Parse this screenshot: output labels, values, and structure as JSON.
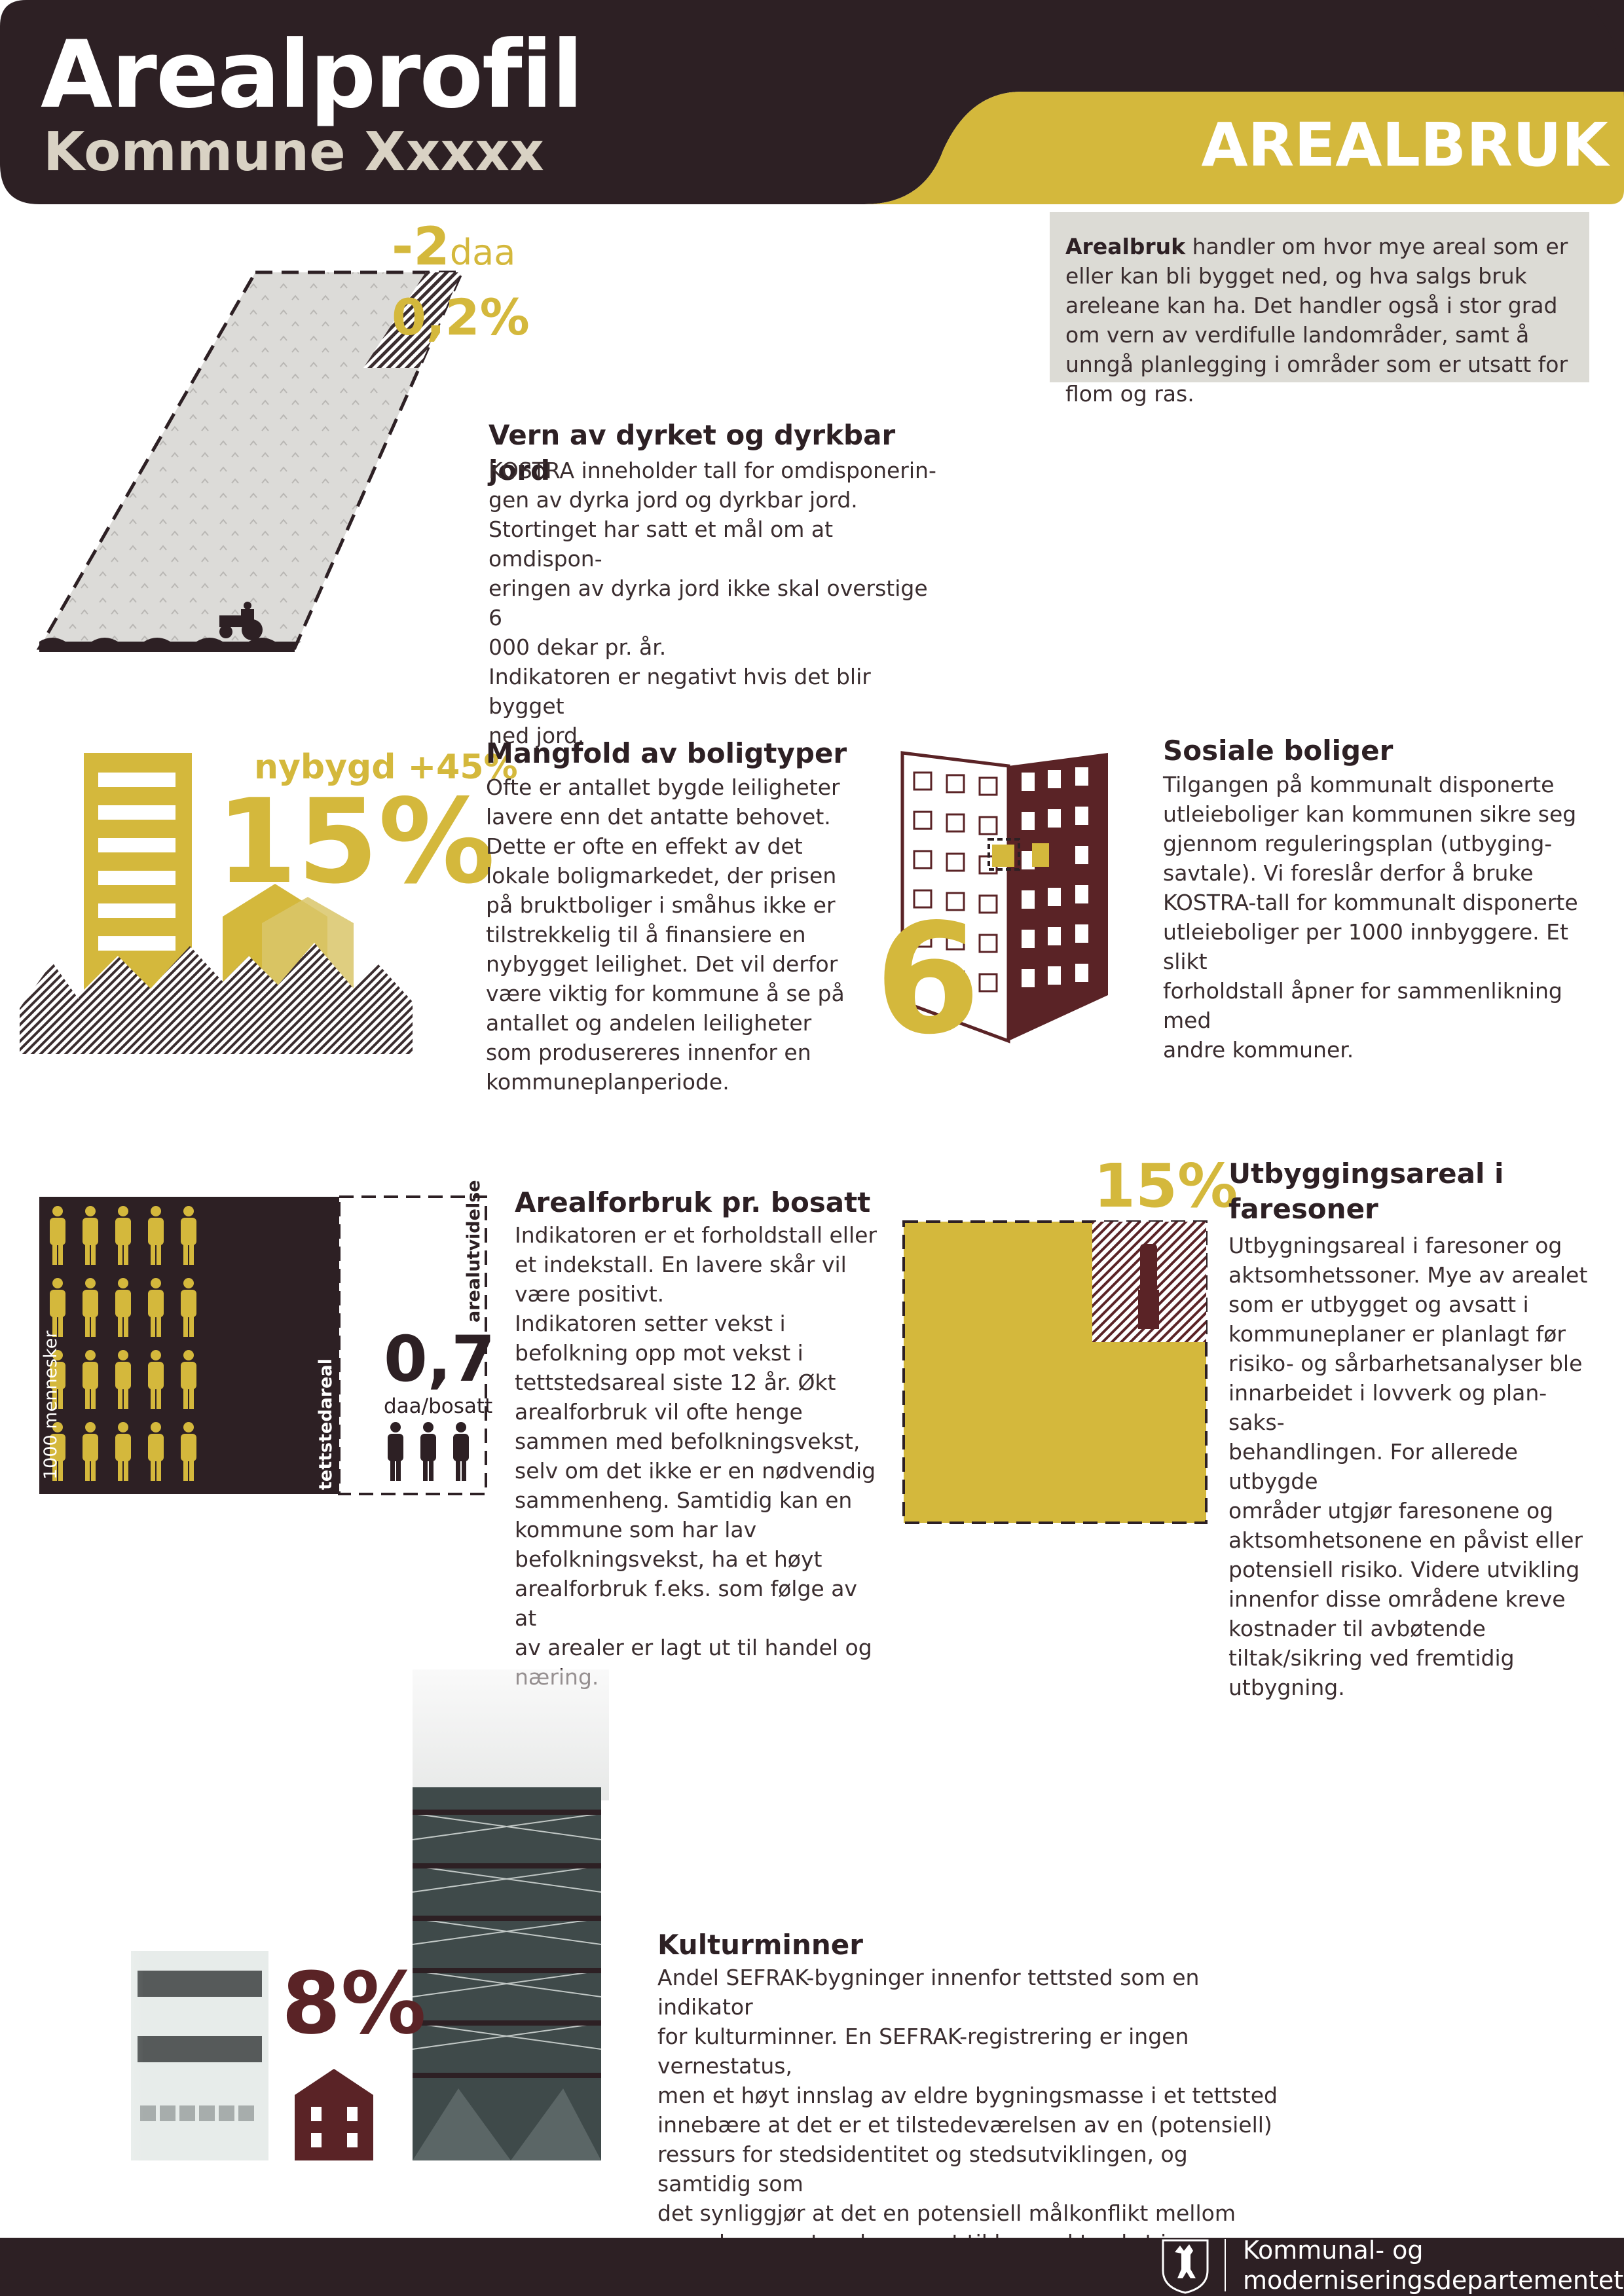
{
  "header": {
    "title": "Arealprofil",
    "subtitle": "Kommune Xxxxx",
    "tag": "AREALBRUK"
  },
  "intro": {
    "lead": "Arealbruk",
    "text": " handler om hvor mye areal som er eller kan bli bygget ned, og hva salgs bruk areleane kan ha. Det handler også i stor grad om vern av verdifulle landområder, samt å unngå planlegging i områder som er utsatt for flom og ras."
  },
  "sections": {
    "farmland": {
      "value": "-2",
      "unit": "daa",
      "percent": "0,2%",
      "share": 0.2,
      "title": "Vern av dyrket og dyrkbar jord",
      "text": "KOSTRA inneholder tall for omdisponerin-\ngen av dyrka jord og dyrkbar jord.\nStortinget har satt et mål om at omdispon-\neringen av dyrka jord ikke skal overstige 6\n000 dekar pr. år.\nIndikatoren er negativt hvis det blir bygget\nned jord."
    },
    "housing": {
      "label": "nybygd +45%",
      "percent": "15%",
      "title": "Mangfold av boligtyper",
      "text": "Ofte er antallet bygde leiligheter\nlavere enn det antatte behovet.\nDette er ofte en effekt av det\nlokale boligmarkedet, der prisen\npå bruktboliger i småhus ikke er\ntilstrekkelig til å finansiere en\nnybygget leilighet. Det vil derfor\nvære viktig for kommune å se på\nantallet og andelen leiligheter\nsom produsereres innenfor en\nkommuneplanperiode."
    },
    "social": {
      "value": "6",
      "title": "Sosiale boliger",
      "text": "Tilgangen på kommunalt disponerte\nutleieboliger kan kommunen sikre seg\ngjennom reguleringsplan (utbyging-\nsavtale). Vi foreslår derfor å bruke\nKOSTRA-tall for kommunalt disponerte\nutleieboliger per 1000 innbyggere. Et slikt\nforholdstall åpner for sammenlikning med\nandre kommuner."
    },
    "per_capita": {
      "people_label": "1000 mennesker",
      "area_label": "tettstedareal",
      "growth_label": "arealutvidelse",
      "value": "0,7",
      "unit": "daa/bosatt",
      "title": "Arealforbruk pr. bosatt",
      "text": "Indikatoren er et forholdstall eller\net indekstall. En lavere skår vil\nvære positivt.\nIndikatoren setter vekst i\nbefolkning opp mot vekst i\ntettstedsareal siste 12 år. Økt\narealforbruk vil ofte henge\nsammen med befolkningsvekst,\nselv om det ikke er en nødvendig\nsammenheng. Samtidig kan en\nkommune som har lav\nbefolkningsvekst, ha et høyt\narealforbruk f.eks. som følge av at\nav arealer er lagt ut til handel og\nnæring."
    },
    "hazard": {
      "percent": "15%",
      "share": 0.15,
      "title": "Utbyggingsareal i\nfaresoner",
      "text": "Utbygningsareal i faresoner og\naktsomhetssoner. Mye av arealet\nsom er utbygget og avsatt i\nkommuneplaner er planlagt før\nrisiko- og sårbarhetsanalyser ble\ninnarbeidet i lovverk og plan-saks-\nbehandlingen. For allerede utbygde\nområder utgjør faresonene og\naktsomhetsonene en påvist eller\npotensiell risiko. Videre utvikling\ninnenfor disse områdene kreve\nkostnader til avbøtende\ntiltak/sikring ved fremtidig\nutbygning."
    },
    "heritage": {
      "percent": "8%",
      "title": "Kulturminner",
      "text": "Andel SEFRAK-bygninger innenfor tettsted som en indikator\nfor kulturminner. En SEFRAK-registrering er ingen vernestatus,\nmen et høyt innslag av eldre bygningsmasse i et tettsted\ninnebære at det er et tilstedeværelsen av en (potensiell)\nressurs for stedsidentitet og stedsutviklingen, og samtidig som\ndet synliggjør at det en potensiell målkonflikt mellom\nvernehensynet og hensynet til kompakt vekst i tettstedene."
    }
  },
  "footer": {
    "ministry": "Kommunal- og\nmoderniseringsdepartementet"
  },
  "colors": {
    "dark": "#2d2024",
    "gold": "#d4b83c",
    "maroon": "#5a2326",
    "grey": "#dcdbd5"
  }
}
